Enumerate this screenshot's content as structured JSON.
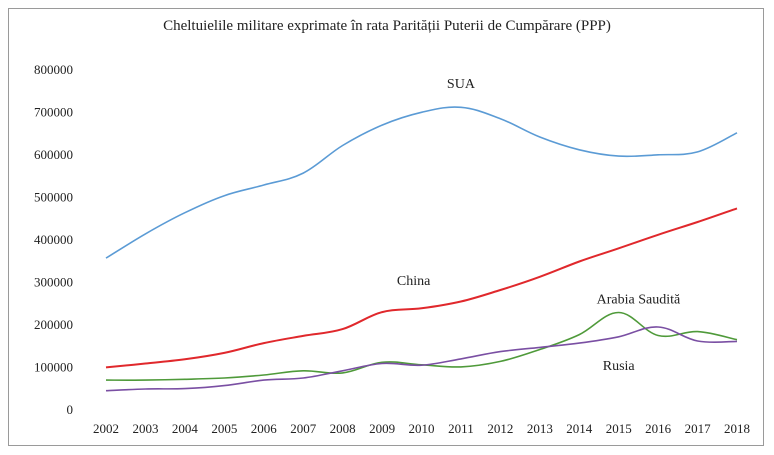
{
  "chart_data": {
    "type": "line",
    "title": "Cheltuielile militare exprimate în rata Parității Puterii de Cumpărare (PPP)",
    "xlabel": "",
    "ylabel": "",
    "x": [
      "2002",
      "2003",
      "2004",
      "2005",
      "2006",
      "2007",
      "2008",
      "2009",
      "2010",
      "2011",
      "2012",
      "2013",
      "2014",
      "2015",
      "2016",
      "2017",
      "2018"
    ],
    "ylim": [
      0,
      800000
    ],
    "yticks": [
      "0",
      "100000",
      "200000",
      "300000",
      "400000",
      "500000",
      "600000",
      "700000",
      "800000"
    ],
    "grid": false,
    "legend": "none",
    "series": [
      {
        "name": "SUA",
        "color": "#5b9bd5",
        "values": [
          355000,
          412000,
          462000,
          502000,
          527000,
          555000,
          620000,
          668000,
          698000,
          710000,
          683000,
          640000,
          610000,
          595000,
          598000,
          605000,
          650000
        ]
      },
      {
        "name": "China",
        "color": "#e0282c",
        "values": [
          98000,
          107000,
          117000,
          132000,
          155000,
          172000,
          188000,
          228000,
          237000,
          253000,
          280000,
          311000,
          347000,
          378000,
          410000,
          440000,
          472000
        ]
      },
      {
        "name": "Arabia Saudită",
        "color": "#4f9a3a",
        "values": [
          68000,
          68000,
          70000,
          73000,
          80000,
          90000,
          85000,
          110000,
          104000,
          99000,
          112000,
          140000,
          175000,
          227000,
          173000,
          182000,
          163000
        ]
      },
      {
        "name": "Rusia",
        "color": "#7a4fa3",
        "values": [
          43000,
          47000,
          48000,
          55000,
          68000,
          73000,
          90000,
          107000,
          103000,
          118000,
          135000,
          145000,
          155000,
          170000,
          193000,
          160000,
          159000
        ]
      }
    ]
  }
}
